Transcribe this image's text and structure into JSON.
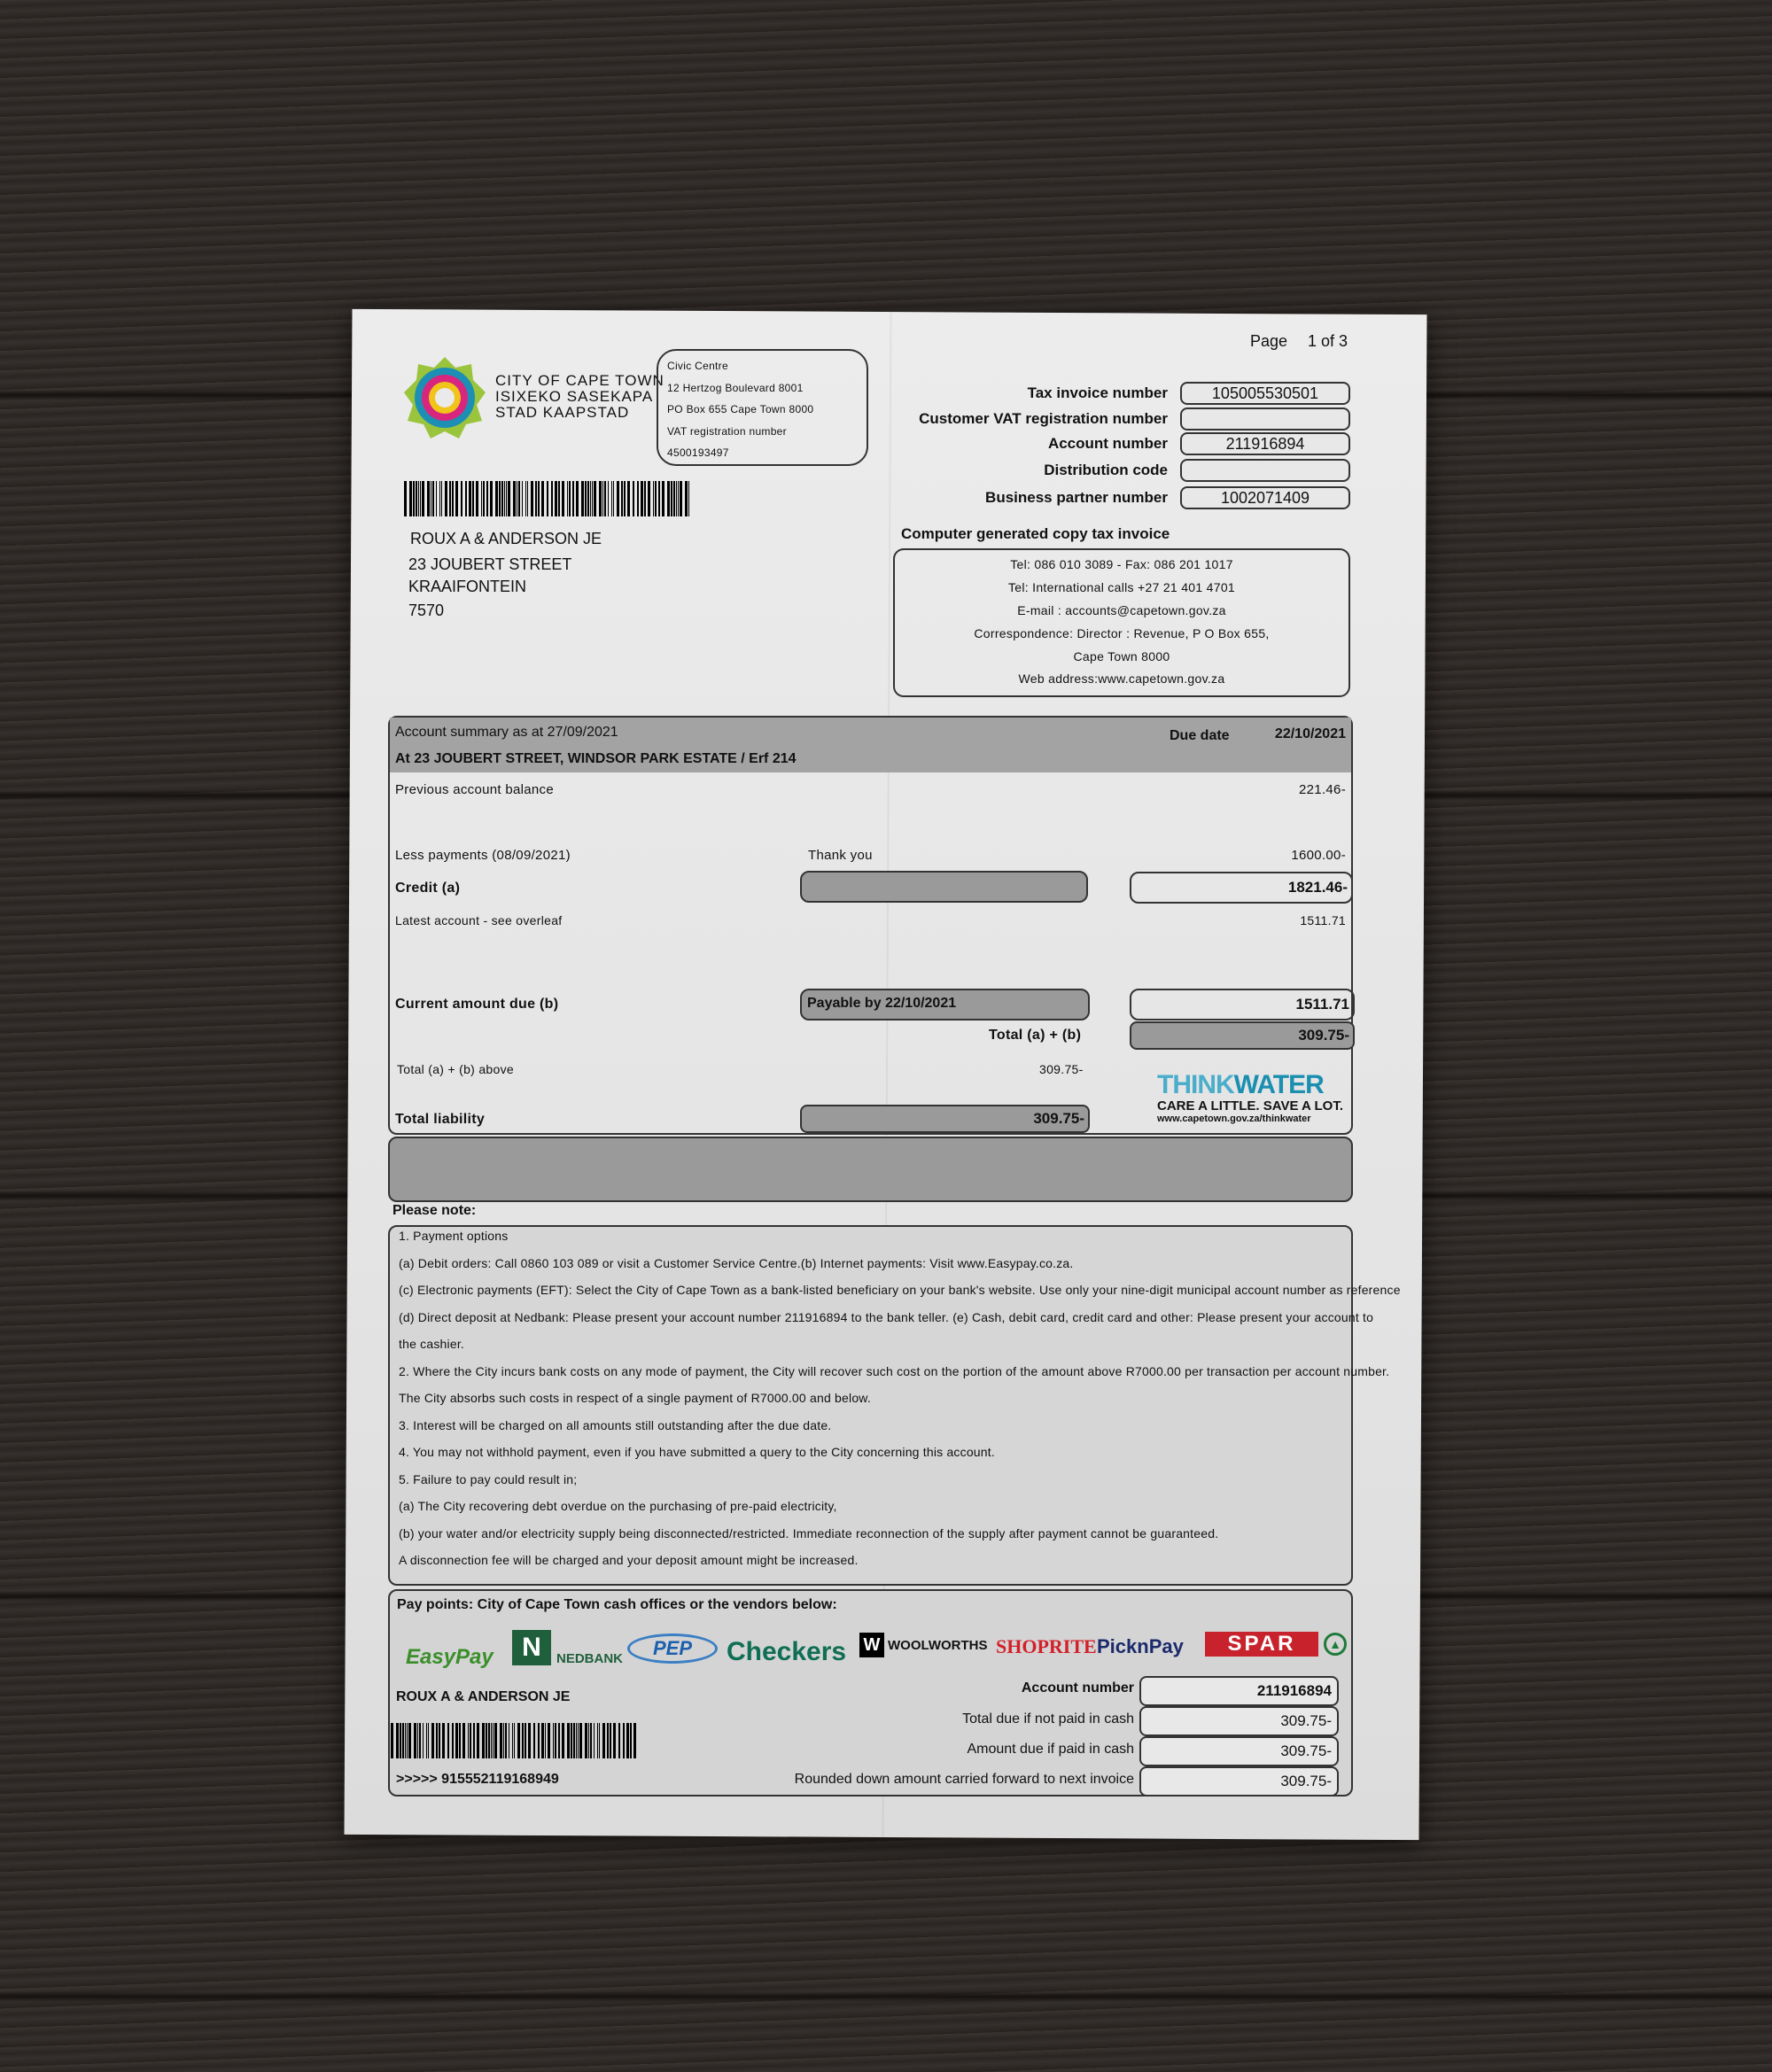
{
  "header": {
    "page_label": "Page",
    "page_value": "1 of 3"
  },
  "issuer": {
    "logo_lines": [
      "CITY OF CAPE TOWN",
      "ISIXEKO SASEKAPA",
      "STAD KAAPSTAD"
    ],
    "civic_lines": [
      "Civic Centre",
      "12 Hertzog Boulevard 8001",
      "PO Box 655 Cape Town 8000",
      "VAT registration number",
      "4500193497"
    ]
  },
  "fields": [
    {
      "label": "Tax invoice number",
      "value": "105005530501"
    },
    {
      "label": "Customer VAT registration number",
      "value": ""
    },
    {
      "label": "Account number",
      "value": "211916894"
    },
    {
      "label": "Distribution code",
      "value": ""
    },
    {
      "label": "Business partner number",
      "value": "1002071409"
    }
  ],
  "recipient": [
    "ROUX A & ANDERSON JE",
    "23 JOUBERT STREET",
    "KRAAIFONTEIN",
    "7570"
  ],
  "contact": {
    "title": "Computer generated copy tax invoice",
    "lines": [
      "Tel: 086 010 3089 - Fax: 086 201 1017",
      "Tel: International calls +27 21 401 4701",
      "E-mail : accounts@capetown.gov.za",
      "Correspondence: Director : Revenue, P O Box 655,",
      "Cape Town 8000",
      "Web address:www.capetown.gov.za"
    ]
  },
  "summary": {
    "title": "Account summary as at 27/09/2021",
    "address": "At 23 JOUBERT STREET, WINDSOR PARK ESTATE / Erf 214",
    "due_label": "Due date",
    "due_date": "22/10/2021",
    "prev_label": "Previous account balance",
    "prev_value": "221.46-",
    "payments_label": "Less payments (08/09/2021)",
    "payments_note": "Thank you",
    "payments_value": "1600.00-",
    "credit_label": "Credit (a)",
    "credit_value": "1821.46-",
    "latest_label": "Latest account - see overleaf",
    "latest_value": "1511.71",
    "current_label": "Current amount due (b)",
    "payable_by": "Payable by 22/10/2021",
    "current_value": "1511.71",
    "total_ab_label": "Total (a) + (b)",
    "total_ab_value": "309.75-",
    "total_above_label": "Total (a) + (b) above",
    "total_above_value": "309.75-",
    "liability_label": "Total liability",
    "liability_value": "309.75-"
  },
  "thinkwater": {
    "think": "THINK",
    "water": "WATER",
    "tagline": "CARE A LITTLE. SAVE A LOT.",
    "url": "www.capetown.gov.za/thinkwater",
    "color": "#1a8fb0"
  },
  "notes": {
    "title": "Please note:",
    "lines": [
      "1. Payment options",
      "(a) Debit orders: Call 0860 103 089 or visit a Customer Service Centre.(b) Internet payments: Visit  www.Easypay.co.za.",
      "(c)  Electronic payments (EFT): Select the City of Cape Town as a bank-listed beneficiary on your bank's website. Use only your nine-digit municipal account number as reference",
      "(d) Direct deposit at Nedbank: Please present your account number 211916894 to the bank teller. (e) Cash, debit card, credit card and other: Please present your account to",
      "the cashier.",
      "2. Where the City incurs bank costs on any mode of payment, the City will recover such cost on the portion of the amount above R7000.00 per transaction per account number.",
      "The City absorbs such costs in respect of a single payment of R7000.00 and below.",
      "3. Interest will be charged on all amounts still outstanding after the due date.",
      "4. You may not withhold payment, even if you have submitted a query to the City concerning this account.",
      "5. Failure to pay could result in;",
      "(a) The City recovering debt overdue on the purchasing of pre-paid electricity,",
      "(b) your water and/or electricity supply being disconnected/restricted. Immediate reconnection of the supply after payment cannot be guaranteed.",
      "A disconnection fee will be charged and your deposit amount might be increased."
    ]
  },
  "paypoints": {
    "title": "Pay points: City of Cape Town cash offices or the vendors below:",
    "vendors": [
      "EasyPay",
      "NEDBANK",
      "PEP",
      "Checkers",
      "WOOLWORTHS",
      "SHOPRITE",
      "PicknPay",
      "SPAR"
    ],
    "name": "ROUX A & ANDERSON JE",
    "code": ">>>>> 915552119168949",
    "fields": [
      {
        "label": "Account number",
        "value": "211916894"
      },
      {
        "label": "Total due if not paid in cash",
        "value": "309.75-"
      },
      {
        "label": "Amount due if paid in cash",
        "value": "309.75-"
      },
      {
        "label": "Rounded down amount carried forward to next invoice",
        "value": "309.75-"
      }
    ]
  }
}
